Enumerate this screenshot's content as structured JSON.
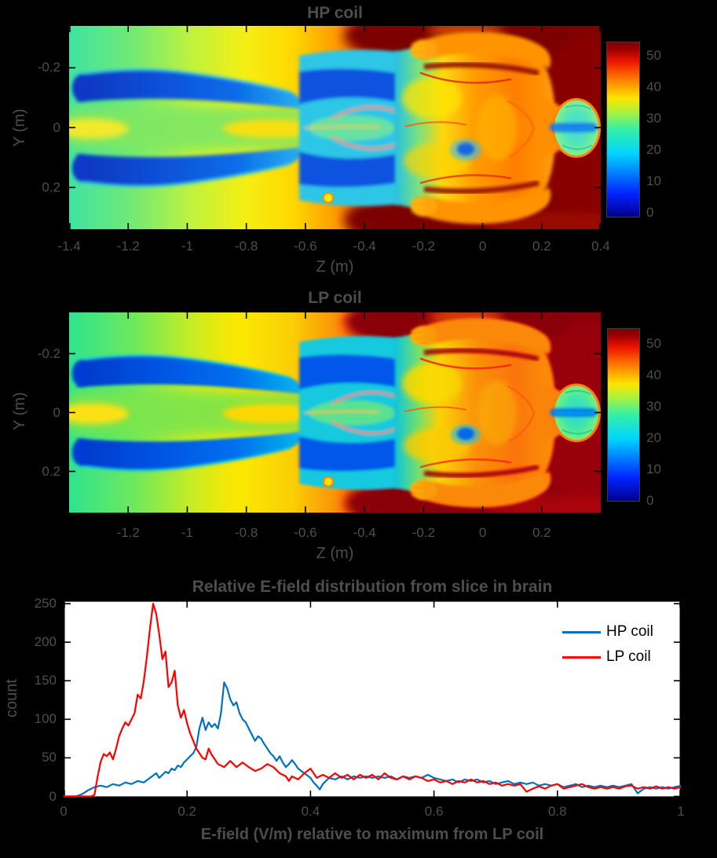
{
  "style": {
    "figure_background": "#000000",
    "plot_background": "#ffffff",
    "axis_text_color": "#4d4d4d",
    "legend_text_color": "#000000",
    "hp_line_color": "#0072BD",
    "lp_line_color": "#FF0000",
    "colormap_low": "#00008f",
    "colormap_high": "#7f0000"
  },
  "chart_data": [
    {
      "type": "heatmap",
      "title": "HP coil",
      "xlabel": "Z (m)",
      "ylabel": "Y (m)",
      "xlim": [
        -1.4,
        0.4
      ],
      "ylim": [
        -0.34,
        0.34
      ],
      "y_axis_reversed": true,
      "x_ticks": [
        -1.4,
        -1.2,
        -1,
        -0.8,
        -0.6,
        -0.4,
        -0.2,
        0,
        0.2,
        0.4
      ],
      "y_ticks": [
        -0.2,
        0,
        0.2
      ],
      "colormap": "jet",
      "colorbar": {
        "ticks": [
          0,
          10,
          20,
          30,
          40,
          50
        ],
        "max": 55
      },
      "description": "Simulated E-field magnitude map over a supine human body, feet toward -Z (left), head toward +Z (right); body tissues mostly 10-35 V/m (blue/cyan/green), torso 35-50 V/m (orange), surrounding field saturated dark red above 50 V/m"
    },
    {
      "type": "heatmap",
      "title": "LP coil",
      "xlabel": "Z (m)",
      "ylabel": "Y (m)",
      "xlim": [
        -1.4,
        0.4
      ],
      "ylim": [
        -0.34,
        0.34
      ],
      "y_axis_reversed": true,
      "x_ticks": [
        -1.2,
        -1,
        -0.8,
        -0.6,
        -0.4,
        -0.2,
        0,
        0.2
      ],
      "y_ticks": [
        -0.2,
        0,
        0.2
      ],
      "colormap": "jet",
      "colorbar": {
        "ticks": [
          0,
          10,
          20,
          30,
          40,
          50
        ],
        "max": 55
      },
      "description": "Simulated E-field magnitude map for LP coil, same body orientation and color scale as HP coil map"
    },
    {
      "type": "line",
      "title": "Relative E-field distribution from slice in brain",
      "xlabel": "E-field (V/m) relative to maximum from LP coil",
      "ylabel": "count",
      "xlim": [
        0,
        1
      ],
      "ylim": [
        0,
        250
      ],
      "x_ticks": [
        0,
        0.2,
        0.4,
        0.6,
        0.8,
        1
      ],
      "y_ticks": [
        0,
        50,
        100,
        150,
        200,
        250
      ],
      "grid": false,
      "legend": {
        "position": "top-right",
        "box": false
      },
      "series": [
        {
          "name": "HP coil",
          "color": "#0072BD",
          "points": [
            [
              0,
              0
            ],
            [
              0.02,
              0
            ],
            [
              0.03,
              3
            ],
            [
              0.04,
              8
            ],
            [
              0.05,
              12
            ],
            [
              0.06,
              14
            ],
            [
              0.07,
              12
            ],
            [
              0.08,
              16
            ],
            [
              0.09,
              14
            ],
            [
              0.1,
              18
            ],
            [
              0.11,
              16
            ],
            [
              0.12,
              20
            ],
            [
              0.13,
              18
            ],
            [
              0.14,
              24
            ],
            [
              0.145,
              27
            ],
            [
              0.15,
              30
            ],
            [
              0.155,
              24
            ],
            [
              0.16,
              28
            ],
            [
              0.165,
              32
            ],
            [
              0.17,
              30
            ],
            [
              0.175,
              36
            ],
            [
              0.18,
              34
            ],
            [
              0.185,
              40
            ],
            [
              0.19,
              38
            ],
            [
              0.195,
              44
            ],
            [
              0.2,
              48
            ],
            [
              0.205,
              52
            ],
            [
              0.21,
              56
            ],
            [
              0.215,
              64
            ],
            [
              0.22,
              88
            ],
            [
              0.225,
              102
            ],
            [
              0.23,
              86
            ],
            [
              0.235,
              96
            ],
            [
              0.24,
              90
            ],
            [
              0.245,
              94
            ],
            [
              0.25,
              88
            ],
            [
              0.255,
              108
            ],
            [
              0.26,
              148
            ],
            [
              0.265,
              140
            ],
            [
              0.27,
              126
            ],
            [
              0.275,
              118
            ],
            [
              0.28,
              122
            ],
            [
              0.285,
              108
            ],
            [
              0.29,
              100
            ],
            [
              0.295,
              96
            ],
            [
              0.3,
              88
            ],
            [
              0.305,
              80
            ],
            [
              0.31,
              72
            ],
            [
              0.315,
              78
            ],
            [
              0.32,
              75
            ],
            [
              0.325,
              68
            ],
            [
              0.33,
              62
            ],
            [
              0.335,
              56
            ],
            [
              0.34,
              52
            ],
            [
              0.345,
              46
            ],
            [
              0.35,
              52
            ],
            [
              0.355,
              44
            ],
            [
              0.36,
              38
            ],
            [
              0.365,
              42
            ],
            [
              0.37,
              47
            ],
            [
              0.375,
              42
            ],
            [
              0.38,
              36
            ],
            [
              0.39,
              30
            ],
            [
              0.4,
              24
            ],
            [
              0.405,
              18
            ],
            [
              0.41,
              14
            ],
            [
              0.415,
              9
            ],
            [
              0.42,
              16
            ],
            [
              0.43,
              24
            ],
            [
              0.44,
              22
            ],
            [
              0.45,
              26
            ],
            [
              0.46,
              22
            ],
            [
              0.47,
              26
            ],
            [
              0.48,
              24
            ],
            [
              0.49,
              26
            ],
            [
              0.5,
              24
            ],
            [
              0.51,
              26
            ],
            [
              0.52,
              24
            ],
            [
              0.53,
              26
            ],
            [
              0.54,
              22
            ],
            [
              0.55,
              26
            ],
            [
              0.56,
              24
            ],
            [
              0.57,
              26
            ],
            [
              0.58,
              24
            ],
            [
              0.59,
              28
            ],
            [
              0.6,
              24
            ],
            [
              0.61,
              22
            ],
            [
              0.62,
              20
            ],
            [
              0.63,
              22
            ],
            [
              0.64,
              18
            ],
            [
              0.65,
              22
            ],
            [
              0.66,
              20
            ],
            [
              0.67,
              22
            ],
            [
              0.68,
              18
            ],
            [
              0.69,
              20
            ],
            [
              0.7,
              16
            ],
            [
              0.71,
              18
            ],
            [
              0.72,
              20
            ],
            [
              0.73,
              16
            ],
            [
              0.74,
              18
            ],
            [
              0.75,
              16
            ],
            [
              0.76,
              18
            ],
            [
              0.77,
              14
            ],
            [
              0.78,
              16
            ],
            [
              0.79,
              14
            ],
            [
              0.8,
              16
            ],
            [
              0.81,
              12
            ],
            [
              0.82,
              14
            ],
            [
              0.83,
              16
            ],
            [
              0.84,
              12
            ],
            [
              0.85,
              14
            ],
            [
              0.86,
              12
            ],
            [
              0.87,
              14
            ],
            [
              0.88,
              12
            ],
            [
              0.89,
              14
            ],
            [
              0.9,
              12
            ],
            [
              0.91,
              14
            ],
            [
              0.92,
              16
            ],
            [
              0.93,
              4
            ],
            [
              0.94,
              10
            ],
            [
              0.95,
              12
            ],
            [
              0.96,
              10
            ],
            [
              0.97,
              12
            ],
            [
              0.98,
              10
            ],
            [
              0.99,
              12
            ],
            [
              1,
              14
            ]
          ]
        },
        {
          "name": "LP coil",
          "color": "#FF0000",
          "points": [
            [
              0,
              0
            ],
            [
              0.03,
              0
            ],
            [
              0.045,
              0
            ],
            [
              0.05,
              2
            ],
            [
              0.055,
              25
            ],
            [
              0.06,
              45
            ],
            [
              0.065,
              55
            ],
            [
              0.07,
              52
            ],
            [
              0.075,
              57
            ],
            [
              0.08,
              48
            ],
            [
              0.085,
              62
            ],
            [
              0.09,
              78
            ],
            [
              0.095,
              88
            ],
            [
              0.1,
              96
            ],
            [
              0.105,
              92
            ],
            [
              0.11,
              100
            ],
            [
              0.115,
              108
            ],
            [
              0.12,
              132
            ],
            [
              0.125,
              127
            ],
            [
              0.13,
              150
            ],
            [
              0.135,
              182
            ],
            [
              0.14,
              218
            ],
            [
              0.145,
              250
            ],
            [
              0.15,
              237
            ],
            [
              0.155,
              210
            ],
            [
              0.16,
              178
            ],
            [
              0.165,
              188
            ],
            [
              0.17,
              142
            ],
            [
              0.175,
              148
            ],
            [
              0.18,
              163
            ],
            [
              0.185,
              118
            ],
            [
              0.19,
              102
            ],
            [
              0.195,
              112
            ],
            [
              0.2,
              95
            ],
            [
              0.205,
              82
            ],
            [
              0.21,
              72
            ],
            [
              0.215,
              62
            ],
            [
              0.22,
              56
            ],
            [
              0.225,
              50
            ],
            [
              0.23,
              48
            ],
            [
              0.235,
              62
            ],
            [
              0.24,
              54
            ],
            [
              0.245,
              48
            ],
            [
              0.25,
              42
            ],
            [
              0.26,
              38
            ],
            [
              0.27,
              46
            ],
            [
              0.28,
              38
            ],
            [
              0.29,
              44
            ],
            [
              0.3,
              38
            ],
            [
              0.31,
              33
            ],
            [
              0.32,
              36
            ],
            [
              0.33,
              42
            ],
            [
              0.34,
              38
            ],
            [
              0.35,
              30
            ],
            [
              0.36,
              26
            ],
            [
              0.365,
              20
            ],
            [
              0.37,
              26
            ],
            [
              0.38,
              22
            ],
            [
              0.39,
              30
            ],
            [
              0.4,
              36
            ],
            [
              0.41,
              24
            ],
            [
              0.42,
              28
            ],
            [
              0.43,
              24
            ],
            [
              0.44,
              30
            ],
            [
              0.45,
              24
            ],
            [
              0.46,
              28
            ],
            [
              0.47,
              22
            ],
            [
              0.48,
              28
            ],
            [
              0.49,
              24
            ],
            [
              0.5,
              28
            ],
            [
              0.51,
              22
            ],
            [
              0.52,
              30
            ],
            [
              0.53,
              24
            ],
            [
              0.54,
              22
            ],
            [
              0.55,
              26
            ],
            [
              0.56,
              22
            ],
            [
              0.57,
              26
            ],
            [
              0.58,
              24
            ],
            [
              0.59,
              20
            ],
            [
              0.6,
              22
            ],
            [
              0.61,
              18
            ],
            [
              0.62,
              20
            ],
            [
              0.63,
              16
            ],
            [
              0.64,
              20
            ],
            [
              0.65,
              18
            ],
            [
              0.66,
              22
            ],
            [
              0.67,
              18
            ],
            [
              0.68,
              20
            ],
            [
              0.69,
              16
            ],
            [
              0.7,
              18
            ],
            [
              0.71,
              14
            ],
            [
              0.72,
              16
            ],
            [
              0.73,
              14
            ],
            [
              0.74,
              16
            ],
            [
              0.75,
              6
            ],
            [
              0.76,
              10
            ],
            [
              0.77,
              13
            ],
            [
              0.78,
              10
            ],
            [
              0.79,
              14
            ],
            [
              0.8,
              16
            ],
            [
              0.81,
              10
            ],
            [
              0.82,
              12
            ],
            [
              0.83,
              14
            ],
            [
              0.84,
              16
            ],
            [
              0.85,
              12
            ],
            [
              0.86,
              10
            ],
            [
              0.87,
              12
            ],
            [
              0.88,
              10
            ],
            [
              0.89,
              12
            ],
            [
              0.9,
              10
            ],
            [
              0.91,
              13
            ],
            [
              0.92,
              14
            ],
            [
              0.93,
              10
            ],
            [
              0.94,
              12
            ],
            [
              0.95,
              10
            ],
            [
              0.96,
              13
            ],
            [
              0.97,
              10
            ],
            [
              0.98,
              12
            ],
            [
              0.99,
              10
            ],
            [
              1,
              12
            ]
          ]
        }
      ]
    }
  ]
}
